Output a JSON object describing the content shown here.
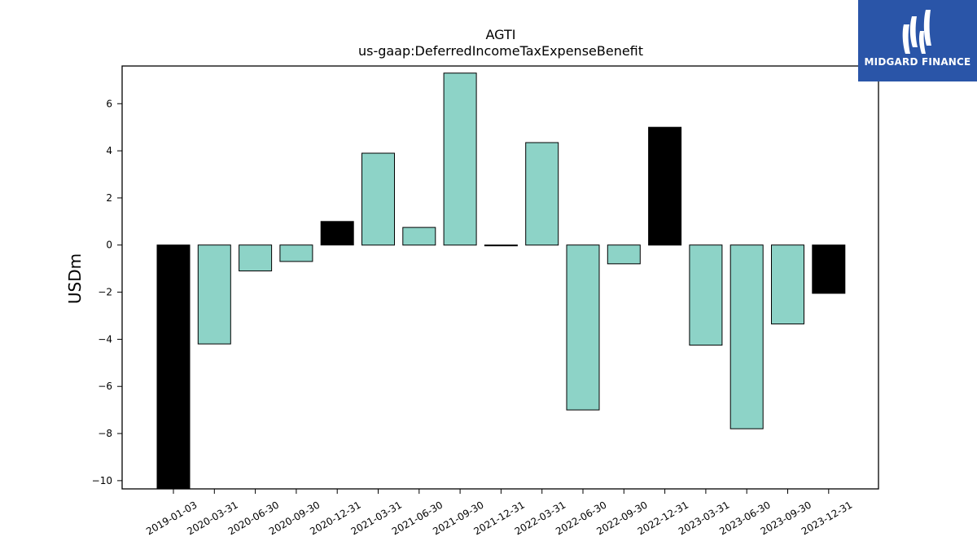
{
  "brand": {
    "name": "MIDGARD FINANCE",
    "bg_color": "#2a55a8"
  },
  "chart_data": {
    "type": "bar",
    "title": "AGTI",
    "subtitle": "us-gaap:DeferredIncomeTaxExpenseBenefit",
    "xlabel": "",
    "ylabel": "USDm",
    "ylim": [
      -10.35,
      7.6
    ],
    "yticks": [
      -10,
      -8,
      -6,
      -4,
      -2,
      0,
      2,
      4,
      6
    ],
    "categories": [
      "2019-01-03",
      "2020-03-31",
      "2020-06-30",
      "2020-09-30",
      "2020-12-31",
      "2021-03-31",
      "2021-06-30",
      "2021-09-30",
      "2021-12-31",
      "2022-03-31",
      "2022-06-30",
      "2022-09-30",
      "2022-12-31",
      "2023-03-31",
      "2023-06-30",
      "2023-09-30",
      "2023-12-31"
    ],
    "values": [
      -10.35,
      -4.2,
      -1.1,
      -0.7,
      1.0,
      3.9,
      0.75,
      7.3,
      -0.02,
      4.35,
      -7.0,
      -0.8,
      5.0,
      -4.25,
      -7.8,
      -3.35,
      -2.05
    ],
    "colors": [
      "#000000",
      "#8dd3c7",
      "#8dd3c7",
      "#8dd3c7",
      "#000000",
      "#8dd3c7",
      "#8dd3c7",
      "#8dd3c7",
      "#000000",
      "#8dd3c7",
      "#8dd3c7",
      "#8dd3c7",
      "#000000",
      "#8dd3c7",
      "#8dd3c7",
      "#8dd3c7",
      "#000000"
    ],
    "grid": false
  }
}
